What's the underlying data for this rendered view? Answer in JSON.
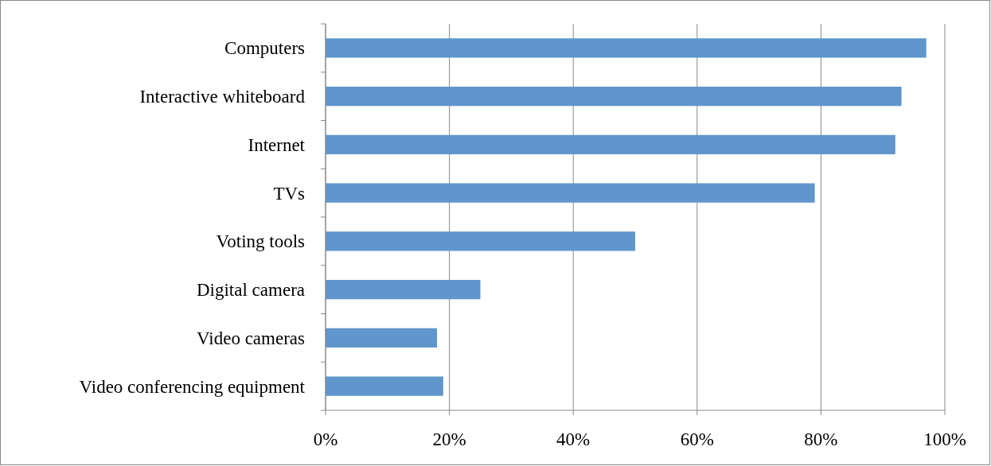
{
  "chart_data": {
    "type": "bar",
    "orientation": "horizontal",
    "categories": [
      "Computers",
      "Interactive whiteboard",
      "Internet",
      "TVs",
      "Voting tools",
      "Digital camera",
      "Video cameras",
      "Video conferencing equipment"
    ],
    "values": [
      97,
      93,
      92,
      79,
      50,
      25,
      18,
      19
    ],
    "color": "#6096cb",
    "xlim": [
      0,
      100
    ],
    "xticks": [
      {
        "value": 0,
        "label": "0%"
      },
      {
        "value": 20,
        "label": "20%"
      },
      {
        "value": 40,
        "label": "40%"
      },
      {
        "value": 60,
        "label": "60%"
      },
      {
        "value": 80,
        "label": "80%"
      },
      {
        "value": 100,
        "label": "100%"
      }
    ],
    "grid": "x"
  }
}
